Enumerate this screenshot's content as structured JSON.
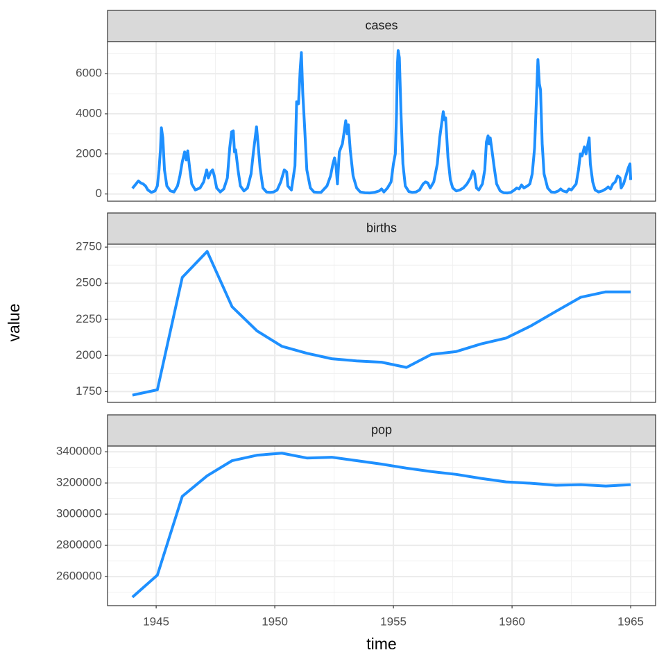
{
  "xlabel": "time",
  "ylabel": "value",
  "chart_data": [
    {
      "type": "line",
      "title": "cases",
      "color": "#1e90ff",
      "grid": true,
      "x": [
        1944.0,
        1944.15,
        1944.25,
        1944.35,
        1944.45,
        1944.55,
        1944.65,
        1944.8,
        1944.95,
        1945.05,
        1945.12,
        1945.18,
        1945.22,
        1945.28,
        1945.35,
        1945.45,
        1945.6,
        1945.75,
        1945.9,
        1946.0,
        1946.1,
        1946.2,
        1946.27,
        1946.33,
        1946.42,
        1946.5,
        1946.65,
        1946.85,
        1947.0,
        1947.13,
        1947.2,
        1947.3,
        1947.38,
        1947.45,
        1947.55,
        1947.7,
        1947.85,
        1948.0,
        1948.1,
        1948.18,
        1948.25,
        1948.3,
        1948.35,
        1948.45,
        1948.55,
        1948.7,
        1948.85,
        1949.0,
        1949.1,
        1949.23,
        1949.28,
        1949.38,
        1949.5,
        1949.65,
        1949.8,
        1949.95,
        1950.1,
        1950.25,
        1950.4,
        1950.5,
        1950.55,
        1950.7,
        1950.85,
        1950.92,
        1951.0,
        1951.07,
        1951.12,
        1951.18,
        1951.25,
        1951.35,
        1951.5,
        1951.65,
        1951.8,
        1951.95,
        1952.2,
        1952.35,
        1952.45,
        1952.52,
        1952.58,
        1952.64,
        1952.72,
        1952.85,
        1952.99,
        1953.05,
        1953.1,
        1953.18,
        1953.3,
        1953.45,
        1953.6,
        1953.8,
        1954.0,
        1954.2,
        1954.4,
        1954.5,
        1954.6,
        1954.75,
        1954.9,
        1955.0,
        1955.08,
        1955.13,
        1955.17,
        1955.2,
        1955.25,
        1955.32,
        1955.4,
        1955.5,
        1955.65,
        1955.8,
        1955.95,
        1956.1,
        1956.25,
        1956.35,
        1956.45,
        1956.55,
        1956.7,
        1956.85,
        1956.95,
        1957.1,
        1957.15,
        1957.2,
        1957.3,
        1957.4,
        1957.5,
        1957.65,
        1957.8,
        1957.95,
        1958.1,
        1958.25,
        1958.35,
        1958.42,
        1958.5,
        1958.6,
        1958.75,
        1958.85,
        1958.92,
        1958.99,
        1959.03,
        1959.08,
        1959.15,
        1959.25,
        1959.35,
        1959.5,
        1959.65,
        1959.8,
        1959.95,
        1960.1,
        1960.2,
        1960.3,
        1960.4,
        1960.5,
        1960.65,
        1960.75,
        1960.85,
        1960.95,
        1961.03,
        1961.09,
        1961.15,
        1961.2,
        1961.27,
        1961.35,
        1961.5,
        1961.65,
        1961.8,
        1961.95,
        1962.05,
        1962.15,
        1962.3,
        1962.4,
        1962.5,
        1962.7,
        1962.8,
        1962.88,
        1962.95,
        1963.05,
        1963.12,
        1963.2,
        1963.25,
        1963.3,
        1963.4,
        1963.5,
        1963.65,
        1963.8,
        1963.95,
        1964.05,
        1964.15,
        1964.25,
        1964.35,
        1964.45,
        1964.55,
        1964.6,
        1964.7,
        1964.8,
        1964.9,
        1964.97,
        1965.0
      ],
      "values": [
        280,
        500,
        650,
        550,
        500,
        400,
        200,
        80,
        150,
        400,
        1200,
        2200,
        3300,
        2800,
        1200,
        400,
        150,
        100,
        400,
        900,
        1600,
        2100,
        1700,
        2150,
        1200,
        500,
        200,
        300,
        600,
        1200,
        800,
        1100,
        1200,
        900,
        300,
        100,
        250,
        800,
        2300,
        3100,
        3150,
        2100,
        2200,
        1200,
        400,
        150,
        300,
        1000,
        2100,
        3350,
        2700,
        1300,
        300,
        100,
        80,
        100,
        200,
        600,
        1200,
        1100,
        400,
        200,
        1400,
        4600,
        4500,
        6200,
        7050,
        5000,
        3500,
        1200,
        300,
        100,
        80,
        80,
        400,
        900,
        1500,
        1800,
        1400,
        500,
        2100,
        2500,
        3650,
        3000,
        3450,
        2200,
        900,
        300,
        100,
        60,
        50,
        80,
        150,
        250,
        100,
        300,
        600,
        1500,
        2000,
        4000,
        6500,
        7150,
        6800,
        4000,
        1500,
        400,
        120,
        80,
        100,
        200,
        500,
        600,
        550,
        300,
        600,
        1500,
        2800,
        4100,
        3700,
        3800,
        1800,
        700,
        300,
        150,
        200,
        300,
        500,
        800,
        1150,
        1000,
        300,
        200,
        500,
        1200,
        2600,
        2900,
        2500,
        2800,
        2200,
        1300,
        500,
        150,
        60,
        50,
        80,
        200,
        300,
        250,
        450,
        300,
        400,
        500,
        1000,
        2300,
        4800,
        6700,
        5500,
        5200,
        2500,
        1000,
        300,
        100,
        80,
        150,
        250,
        150,
        100,
        250,
        200,
        500,
        1200,
        2000,
        1900,
        2350,
        2000,
        2500,
        2800,
        1500,
        600,
        200,
        100,
        150,
        250,
        350,
        250,
        500,
        600,
        900,
        800,
        300,
        500,
        900,
        1300,
        1500,
        700
      ],
      "xlim": [
        1942.95,
        1966.05
      ],
      "xticks": [
        1945,
        1950,
        1955,
        1960,
        1965
      ],
      "ylim": [
        -360,
        7600
      ],
      "yticks": [
        0,
        2000,
        4000,
        6000
      ]
    },
    {
      "type": "line",
      "title": "births",
      "color": "#1e90ff",
      "grid": true,
      "x": [
        1944.0,
        1945.05,
        1946.1,
        1947.15,
        1948.2,
        1949.25,
        1950.3,
        1951.35,
        1952.4,
        1953.45,
        1954.5,
        1955.55,
        1956.6,
        1957.65,
        1958.7,
        1959.75,
        1960.8,
        1961.85,
        1962.9,
        1963.95,
        1965.0
      ],
      "values": [
        1725,
        1762,
        2540,
        2720,
        2337,
        2170,
        2063,
        2015,
        1977,
        1962,
        1953,
        1917,
        2007,
        2027,
        2080,
        2120,
        2205,
        2305,
        2403,
        2440,
        2440
      ],
      "xlim": [
        1942.95,
        1966.05
      ],
      "xticks": [
        1945,
        1950,
        1955,
        1960,
        1965
      ],
      "ylim": [
        1675,
        2770
      ],
      "yticks": [
        1750,
        2000,
        2250,
        2500,
        2750
      ]
    },
    {
      "type": "line",
      "title": "pop",
      "color": "#1e90ff",
      "grid": true,
      "x": [
        1944.0,
        1945.05,
        1946.1,
        1947.15,
        1948.2,
        1949.25,
        1950.3,
        1951.35,
        1952.4,
        1953.45,
        1954.5,
        1955.55,
        1956.6,
        1957.65,
        1958.7,
        1959.75,
        1960.8,
        1961.85,
        1962.9,
        1963.95,
        1965.0
      ],
      "values": [
        2468000,
        2609000,
        3114000,
        3246000,
        3343000,
        3378000,
        3391000,
        3360000,
        3365000,
        3343000,
        3321000,
        3295000,
        3273000,
        3255000,
        3229000,
        3207000,
        3198000,
        3185000,
        3189000,
        3180000,
        3189000
      ],
      "xlim": [
        1942.95,
        1966.05
      ],
      "xticks": [
        1945,
        1950,
        1955,
        1960,
        1965
      ],
      "ylim": [
        2413500,
        3436500
      ],
      "yticks": [
        2600000,
        2800000,
        3000000,
        3200000,
        3400000
      ]
    }
  ]
}
